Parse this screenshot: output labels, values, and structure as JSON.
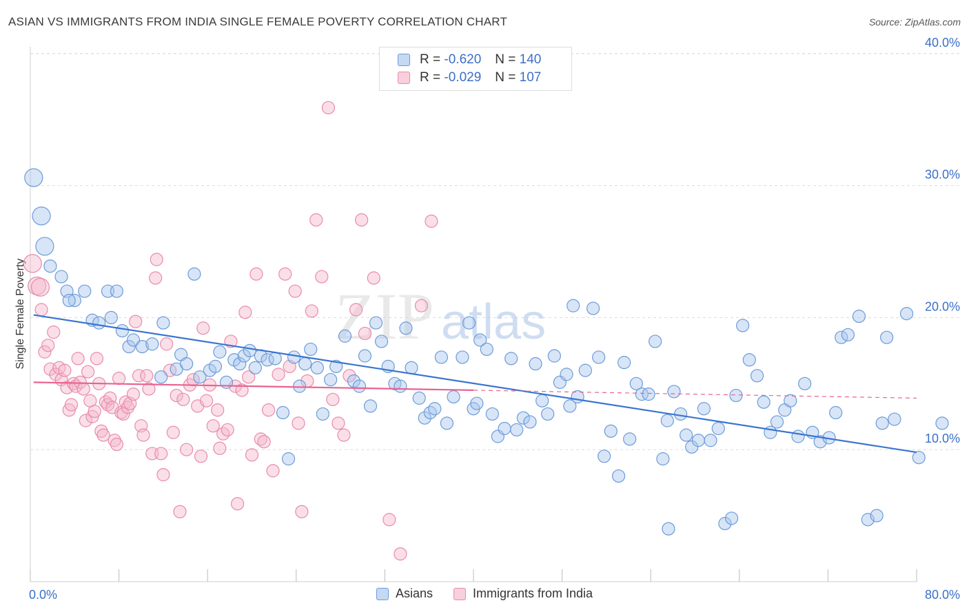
{
  "title": "ASIAN VS IMMIGRANTS FROM INDIA SINGLE FEMALE POVERTY CORRELATION CHART",
  "source": "Source: ZipAtlas.com",
  "watermark": {
    "part1": "ZIP",
    "part2": "atlas"
  },
  "legend_top": [
    {
      "r_label": "R =",
      "r_value": "-0.620",
      "n_label": "N =",
      "n_value": "140"
    },
    {
      "r_label": "R =",
      "r_value": "-0.029",
      "n_label": "N =",
      "n_value": "107"
    }
  ],
  "colors": {
    "blue_fill": "#a8c6ee",
    "blue_stroke": "#6b9bd8",
    "blue_line": "#3a74d0",
    "pink_fill": "#f5b8cc",
    "pink_stroke": "#e98aaa",
    "pink_line": "#e8628f",
    "axis_label": "#3a6fc8",
    "grid": "#dcdcdc"
  },
  "chart_data": {
    "type": "scatter",
    "title": "ASIAN VS IMMIGRANTS FROM INDIA SINGLE FEMALE POVERTY CORRELATION CHART",
    "xlabel": "",
    "ylabel": "Single Female Poverty",
    "xlim": [
      0,
      80
    ],
    "ylim": [
      0,
      40
    ],
    "x_tick_labels": [
      "0.0%",
      "80.0%"
    ],
    "y_ticks": [
      10,
      20,
      30,
      40
    ],
    "y_tick_labels": [
      "10.0%",
      "20.0%",
      "30.0%",
      "40.0%"
    ],
    "grid": true,
    "legend_position": "bottom",
    "series": [
      {
        "name": "Asians",
        "color": "#6b9bd8",
        "trend": {
          "x": [
            0.3,
            80
          ],
          "y": [
            20.2,
            9.8
          ],
          "style": "solid"
        },
        "points": [
          [
            0.3,
            30.6
          ],
          [
            1,
            27.7
          ],
          [
            1.3,
            25.4
          ],
          [
            1.8,
            23.9
          ],
          [
            2.8,
            23.1
          ],
          [
            3.3,
            22
          ],
          [
            4,
            21.3
          ],
          [
            4.9,
            22
          ],
          [
            7,
            22
          ],
          [
            7.8,
            22
          ],
          [
            3.5,
            21.3
          ],
          [
            5.6,
            19.8
          ],
          [
            6.2,
            19.6
          ],
          [
            7.3,
            20
          ],
          [
            8.3,
            19
          ],
          [
            8.9,
            17.8
          ],
          [
            9.3,
            18.3
          ],
          [
            10.1,
            17.8
          ],
          [
            11,
            18
          ],
          [
            12,
            19.6
          ],
          [
            11.8,
            15.5
          ],
          [
            13.2,
            16.1
          ],
          [
            13.6,
            17.2
          ],
          [
            14.1,
            16.5
          ],
          [
            14.8,
            23.3
          ],
          [
            15.3,
            15.5
          ],
          [
            16.2,
            16
          ],
          [
            16.7,
            16.3
          ],
          [
            17.1,
            17.4
          ],
          [
            17.7,
            15.1
          ],
          [
            18.4,
            16.8
          ],
          [
            18.9,
            16.5
          ],
          [
            19.3,
            17.1
          ],
          [
            19.8,
            17.5
          ],
          [
            20.3,
            16.2
          ],
          [
            20.8,
            17.1
          ],
          [
            21.4,
            16.8
          ],
          [
            22.1,
            16.9
          ],
          [
            22.8,
            12.8
          ],
          [
            23.3,
            9.3
          ],
          [
            23.8,
            17
          ],
          [
            24.3,
            14.8
          ],
          [
            24.8,
            16.5
          ],
          [
            25.3,
            17.6
          ],
          [
            25.9,
            16.2
          ],
          [
            26.4,
            12.7
          ],
          [
            27.1,
            15.3
          ],
          [
            27.6,
            16.3
          ],
          [
            28.4,
            18.6
          ],
          [
            29.2,
            15.2
          ],
          [
            29.7,
            14.8
          ],
          [
            30.2,
            17.1
          ],
          [
            30.7,
            13.3
          ],
          [
            31.2,
            19.6
          ],
          [
            31.7,
            18.2
          ],
          [
            32.3,
            16.3
          ],
          [
            32.9,
            15
          ],
          [
            33.4,
            14.8
          ],
          [
            33.9,
            19.2
          ],
          [
            34.4,
            16.2
          ],
          [
            35.1,
            13.9
          ],
          [
            35.6,
            12.4
          ],
          [
            36.1,
            12.8
          ],
          [
            36.5,
            13.1
          ],
          [
            37.1,
            17
          ],
          [
            37.6,
            12
          ],
          [
            38.2,
            14
          ],
          [
            39,
            17
          ],
          [
            39.6,
            19.6
          ],
          [
            40,
            13.1
          ],
          [
            40.6,
            18.3
          ],
          [
            41.2,
            17.6
          ],
          [
            41.7,
            12.7
          ],
          [
            42.2,
            11
          ],
          [
            42.8,
            11.6
          ],
          [
            43.4,
            16.9
          ],
          [
            43.9,
            11.5
          ],
          [
            44.5,
            12.4
          ],
          [
            45.1,
            12.1
          ],
          [
            45.6,
            16.5
          ],
          [
            46.2,
            13.7
          ],
          [
            46.7,
            12.7
          ],
          [
            47.3,
            17.1
          ],
          [
            47.8,
            15.1
          ],
          [
            48.4,
            15.7
          ],
          [
            49,
            20.9
          ],
          [
            49.4,
            14
          ],
          [
            50.1,
            16
          ],
          [
            50.8,
            20.7
          ],
          [
            51.3,
            17
          ],
          [
            51.8,
            9.5
          ],
          [
            52.4,
            11.4
          ],
          [
            53.1,
            8
          ],
          [
            53.6,
            16.6
          ],
          [
            54.1,
            10.8
          ],
          [
            54.7,
            15
          ],
          [
            55.2,
            14.2
          ],
          [
            55.8,
            14.2
          ],
          [
            56.4,
            18.2
          ],
          [
            57.1,
            9.3
          ],
          [
            57.6,
            4
          ],
          [
            58.1,
            14.4
          ],
          [
            58.7,
            12.7
          ],
          [
            59.2,
            11.1
          ],
          [
            59.7,
            10.2
          ],
          [
            60.3,
            10.7
          ],
          [
            60.8,
            13.1
          ],
          [
            61.4,
            10.7
          ],
          [
            62.1,
            11.6
          ],
          [
            62.7,
            4.4
          ],
          [
            63.3,
            4.8
          ],
          [
            63.7,
            14.1
          ],
          [
            64.3,
            19.4
          ],
          [
            64.9,
            16.8
          ],
          [
            65.6,
            15.6
          ],
          [
            66.2,
            13.6
          ],
          [
            66.8,
            11.3
          ],
          [
            67.4,
            12.1
          ],
          [
            68.1,
            13
          ],
          [
            68.6,
            13.7
          ],
          [
            69.3,
            11
          ],
          [
            69.9,
            15
          ],
          [
            70.6,
            11.3
          ],
          [
            71.3,
            10.6
          ],
          [
            72.1,
            10.9
          ],
          [
            72.7,
            12.8
          ],
          [
            73.2,
            18.5
          ],
          [
            73.8,
            18.7
          ],
          [
            74.8,
            20.1
          ],
          [
            75.6,
            4.7
          ],
          [
            76.4,
            5
          ],
          [
            76.9,
            12
          ],
          [
            77.3,
            18.5
          ],
          [
            78,
            12.3
          ],
          [
            79.1,
            20.3
          ],
          [
            80.2,
            9.4
          ],
          [
            82.3,
            12
          ],
          [
            48.7,
            13.3
          ],
          [
            40.3,
            13.5
          ],
          [
            57.5,
            12.2
          ]
        ]
      },
      {
        "name": "Immigrants from India",
        "color": "#e98aaa",
        "trend": {
          "x": [
            0.3,
            40
          ],
          "y": [
            15.1,
            14.5
          ],
          "style": "solid",
          "dashed_to": [
            80,
            13.9
          ]
        },
        "points": [
          [
            0.2,
            24.1
          ],
          [
            0.6,
            22.4
          ],
          [
            0.9,
            22.3
          ],
          [
            1,
            20.6
          ],
          [
            1.3,
            17.4
          ],
          [
            1.6,
            17.9
          ],
          [
            1.8,
            16.1
          ],
          [
            2.1,
            18.9
          ],
          [
            2.3,
            15.7
          ],
          [
            2.6,
            16.2
          ],
          [
            2.8,
            15.3
          ],
          [
            3.1,
            16
          ],
          [
            3.3,
            14.7
          ],
          [
            3.5,
            13
          ],
          [
            3.7,
            13.4
          ],
          [
            3.9,
            15
          ],
          [
            4.1,
            14.8
          ],
          [
            4.3,
            16.9
          ],
          [
            4.5,
            15.1
          ],
          [
            4.8,
            14.6
          ],
          [
            5,
            12.2
          ],
          [
            5.2,
            15.9
          ],
          [
            5.4,
            13.7
          ],
          [
            5.6,
            12.5
          ],
          [
            5.8,
            12.9
          ],
          [
            6,
            16.9
          ],
          [
            6.2,
            15
          ],
          [
            6.4,
            11.4
          ],
          [
            6.6,
            11.1
          ],
          [
            6.8,
            13.6
          ],
          [
            7,
            13.4
          ],
          [
            7.2,
            13.9
          ],
          [
            7.4,
            13.2
          ],
          [
            7.6,
            10.7
          ],
          [
            7.8,
            10.4
          ],
          [
            8,
            15.4
          ],
          [
            8.2,
            12.8
          ],
          [
            8.4,
            12.7
          ],
          [
            8.6,
            13.6
          ],
          [
            8.8,
            13.2
          ],
          [
            9,
            13.5
          ],
          [
            9.3,
            14.2
          ],
          [
            9.5,
            19.7
          ],
          [
            9.8,
            15.6
          ],
          [
            10,
            11.8
          ],
          [
            10.2,
            11.1
          ],
          [
            10.5,
            15.6
          ],
          [
            10.7,
            14.6
          ],
          [
            11,
            9.7
          ],
          [
            11.3,
            23
          ],
          [
            11.4,
            24.4
          ],
          [
            11.8,
            9.7
          ],
          [
            12,
            8.1
          ],
          [
            12.3,
            18
          ],
          [
            12.6,
            16
          ],
          [
            12.9,
            11.3
          ],
          [
            13.2,
            14.1
          ],
          [
            13.5,
            5.3
          ],
          [
            13.8,
            13.8
          ],
          [
            14.1,
            10
          ],
          [
            14.4,
            14.9
          ],
          [
            14.7,
            15.3
          ],
          [
            15.1,
            13.3
          ],
          [
            15.4,
            9.5
          ],
          [
            15.6,
            19.2
          ],
          [
            15.9,
            13.7
          ],
          [
            16.2,
            14.9
          ],
          [
            16.5,
            11.8
          ],
          [
            16.9,
            13
          ],
          [
            17.1,
            10.1
          ],
          [
            17.4,
            11.2
          ],
          [
            17.8,
            11.5
          ],
          [
            18.1,
            18.2
          ],
          [
            18.5,
            14.8
          ],
          [
            18.7,
            5.9
          ],
          [
            19.1,
            14.5
          ],
          [
            19.4,
            20.4
          ],
          [
            19.7,
            15.5
          ],
          [
            20,
            9.6
          ],
          [
            20.4,
            23.3
          ],
          [
            20.8,
            10.8
          ],
          [
            21.1,
            10.6
          ],
          [
            21.5,
            13
          ],
          [
            21.9,
            8.4
          ],
          [
            22.4,
            15.7
          ],
          [
            23,
            23.3
          ],
          [
            23.4,
            16.3
          ],
          [
            23.9,
            22
          ],
          [
            24.2,
            12
          ],
          [
            24.5,
            5.3
          ],
          [
            25,
            15.2
          ],
          [
            25.4,
            20.5
          ],
          [
            25.8,
            27.4
          ],
          [
            26.3,
            23.1
          ],
          [
            26.9,
            35.9
          ],
          [
            27.3,
            13.8
          ],
          [
            27.8,
            12
          ],
          [
            28.3,
            11.1
          ],
          [
            28.8,
            15.6
          ],
          [
            29.4,
            20.6
          ],
          [
            29.9,
            27.4
          ],
          [
            30.2,
            18.8
          ],
          [
            31,
            23
          ],
          [
            32.4,
            4.7
          ],
          [
            33.4,
            2.1
          ],
          [
            35.3,
            20.9
          ],
          [
            36.2,
            27.3
          ]
        ]
      }
    ]
  },
  "legend_bottom": [
    {
      "label": "Asians"
    },
    {
      "label": "Immigrants from India"
    }
  ]
}
